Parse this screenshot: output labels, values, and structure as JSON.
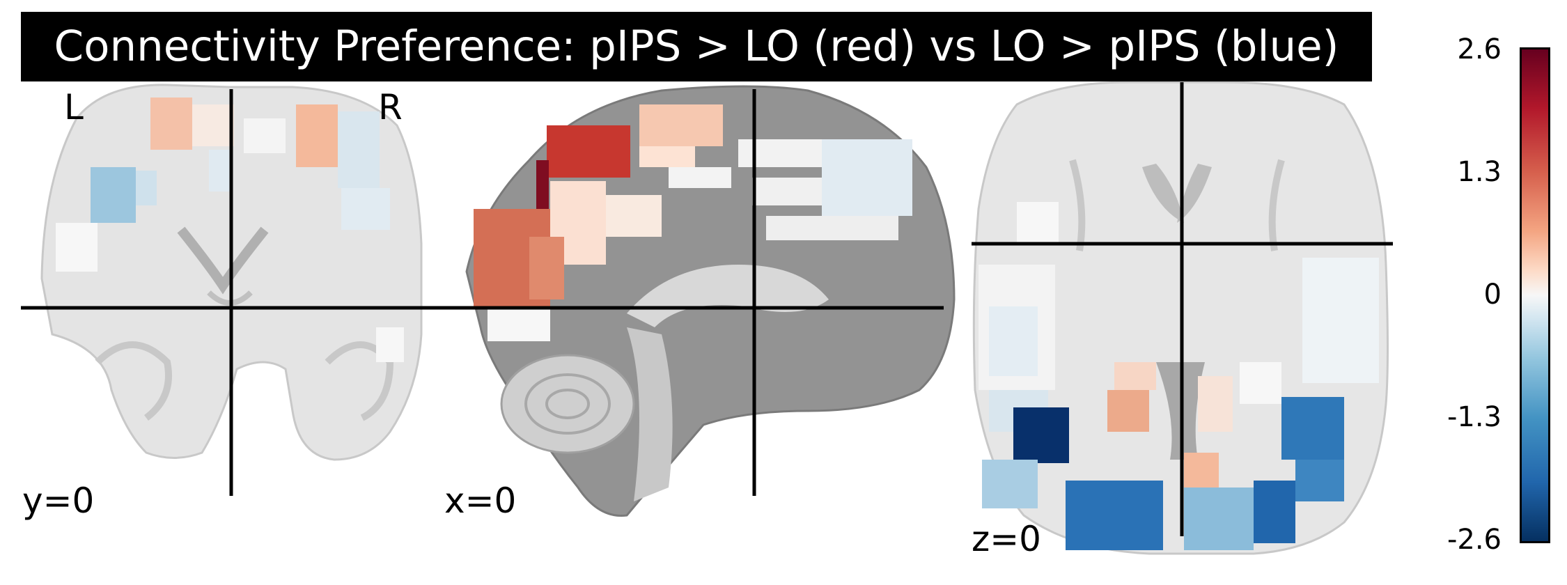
{
  "title": "Connectivity Preference: pIPS > LO (red) vs LO > pIPS (blue)",
  "orientation": {
    "left": "L",
    "right": "R"
  },
  "cuts": {
    "coronal": "y=0",
    "sagittal": "x=0",
    "axial": "z=0"
  },
  "colorbar": {
    "colormap": "RdBu_r",
    "ticks": [
      "2.6",
      "1.3",
      "0",
      "-1.3",
      "-2.6"
    ],
    "vmin": -2.6,
    "vmax": 2.6
  }
}
